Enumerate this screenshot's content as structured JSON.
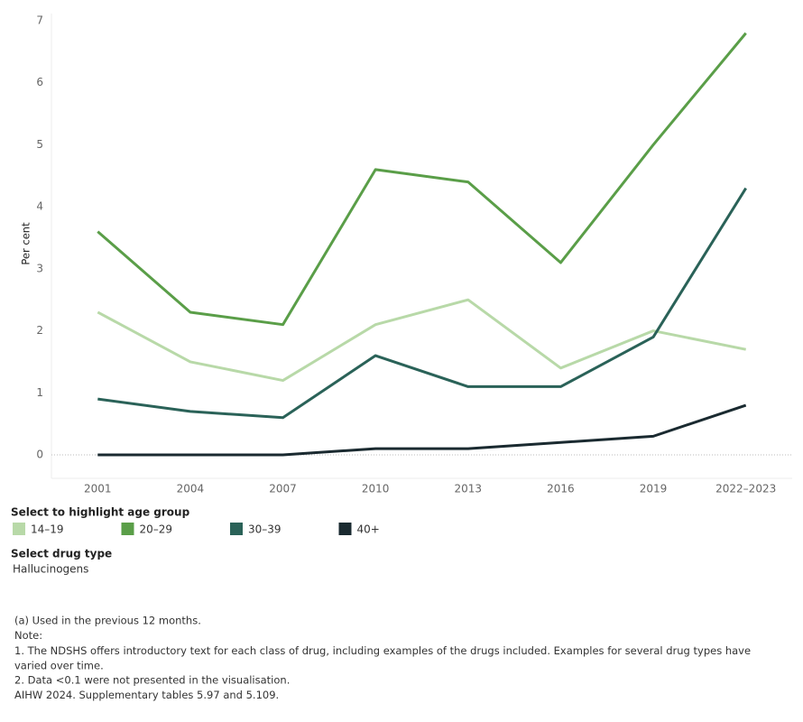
{
  "chart_data": {
    "type": "line",
    "y_label": "Per cent",
    "categories": [
      "2001",
      "2004",
      "2007",
      "2010",
      "2013",
      "2016",
      "2019",
      "2022–2023"
    ],
    "series": [
      {
        "name": "14–19",
        "color": "#b8d9a8",
        "values": [
          2.3,
          1.5,
          1.2,
          2.1,
          2.5,
          1.4,
          2.0,
          1.7
        ]
      },
      {
        "name": "20–29",
        "color": "#5a9e48",
        "values": [
          3.6,
          2.3,
          2.1,
          4.6,
          4.4,
          3.1,
          5.0,
          6.8
        ]
      },
      {
        "name": "30–39",
        "color": "#2a6258",
        "values": [
          0.9,
          0.7,
          0.6,
          1.6,
          1.1,
          1.1,
          1.9,
          4.3
        ]
      },
      {
        "name": "40+",
        "color": "#1a2a30",
        "values": [
          0,
          0,
          0,
          0.1,
          0.1,
          0.2,
          0.3,
          0.8
        ]
      }
    ],
    "ylim": [
      0,
      7
    ],
    "yticks": [
      0,
      1,
      2,
      3,
      4,
      5,
      6,
      7
    ],
    "grid": false,
    "legend_title": "Select to highlight age group"
  },
  "controls": {
    "drug_label": "Select drug type",
    "drug_value": "Hallucinogens"
  },
  "notes": [
    "(a) Used in the previous 12 months.",
    "Note:",
    "1. The NDSHS offers introductory text for each class of drug, including examples of the drugs included. Examples for several drug types have varied over time.",
    "2. Data <0.1 were not presented in the visualisation.",
    "AIHW 2024. Supplementary tables 5.97 and 5.109."
  ]
}
